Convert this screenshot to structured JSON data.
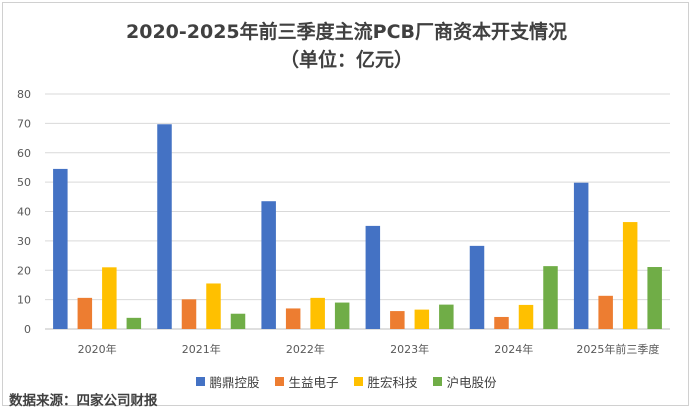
{
  "chart_data": {
    "type": "bar",
    "title": "2020-2025年前三季度主流PCB厂商资本开支情况",
    "subtitle": "（单位：亿元）",
    "categories": [
      "2020年",
      "2021年",
      "2022年",
      "2023年",
      "2024年",
      "2025年前三季度"
    ],
    "series": [
      {
        "name": "鹏鼎控股",
        "color": "#4472C4",
        "values": [
          54.5,
          69.7,
          43.5,
          35.1,
          28.3,
          49.8
        ]
      },
      {
        "name": "生益电子",
        "color": "#ED7D31",
        "values": [
          10.6,
          10.1,
          7.0,
          6.1,
          4.1,
          11.3
        ]
      },
      {
        "name": "胜宏科技",
        "color": "#FFC000",
        "values": [
          21.0,
          15.5,
          10.6,
          6.6,
          8.2,
          36.4
        ]
      },
      {
        "name": "沪电股份",
        "color": "#70AD47",
        "values": [
          3.8,
          5.2,
          9.0,
          8.3,
          21.4,
          21.1
        ]
      }
    ],
    "ylim": [
      0,
      80
    ],
    "yticks": [
      0,
      10,
      20,
      30,
      40,
      50,
      60,
      70,
      80
    ],
    "grid": true,
    "legend": "bottom"
  },
  "source": "数据来源：四家公司财报"
}
